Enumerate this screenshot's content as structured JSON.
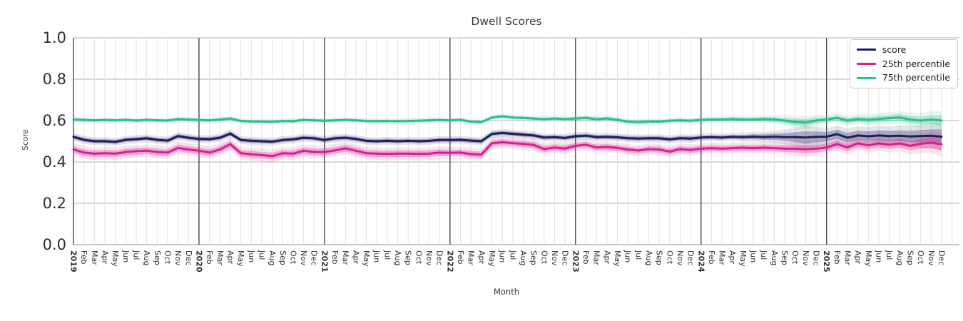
{
  "chart_data": {
    "type": "line",
    "title": "Dwell Scores",
    "xlabel": "Month",
    "ylabel": "Score",
    "ylim": [
      0.0,
      1.0
    ],
    "yticks": [
      0.0,
      0.2,
      0.4,
      0.6,
      0.8,
      1.0
    ],
    "grid": true,
    "legend_position": "upper right",
    "x_tick_labels": [
      "2019",
      "Feb",
      "Mar",
      "Apr",
      "May",
      "Jun",
      "Jul",
      "Aug",
      "Sep",
      "Oct",
      "Nov",
      "Dec",
      "2020",
      "Feb",
      "Mar",
      "Apr",
      "May",
      "Jun",
      "Jul",
      "Aug",
      "Sep",
      "Oct",
      "Nov",
      "Dec",
      "2021",
      "Feb",
      "Mar",
      "Apr",
      "May",
      "Jun",
      "Jul",
      "Aug",
      "Sep",
      "Oct",
      "Nov",
      "Dec",
      "2022",
      "Feb",
      "Mar",
      "Apr",
      "May",
      "Jun",
      "Jul",
      "Aug",
      "Sep",
      "Oct",
      "Nov",
      "Dec",
      "2023",
      "Feb",
      "Mar",
      "Apr",
      "May",
      "Jun",
      "Jul",
      "Aug",
      "Sep",
      "Oct",
      "Nov",
      "Dec",
      "2024",
      "Feb",
      "Mar",
      "Apr",
      "May",
      "Jun",
      "Jul",
      "Aug",
      "Sep",
      "Oct",
      "Nov",
      "Dec",
      "2025",
      "Feb",
      "Mar",
      "Apr",
      "May",
      "Jun",
      "Jul",
      "Aug",
      "Sep",
      "Oct",
      "Nov",
      "Dec"
    ],
    "year_tick_indices": [
      0,
      12,
      24,
      36,
      48,
      60,
      72
    ],
    "series": [
      {
        "name": "score",
        "color": "#1e1e5e",
        "values": [
          0.521,
          0.507,
          0.5,
          0.5,
          0.497,
          0.507,
          0.51,
          0.514,
          0.507,
          0.503,
          0.525,
          0.517,
          0.511,
          0.51,
          0.517,
          0.537,
          0.506,
          0.502,
          0.5,
          0.498,
          0.506,
          0.509,
          0.517,
          0.514,
          0.506,
          0.514,
          0.517,
          0.511,
          0.502,
          0.5,
          0.502,
          0.5,
          0.502,
          0.5,
          0.502,
          0.506,
          0.506,
          0.507,
          0.503,
          0.5,
          0.535,
          0.54,
          0.536,
          0.532,
          0.528,
          0.518,
          0.52,
          0.516,
          0.524,
          0.527,
          0.52,
          0.521,
          0.519,
          0.515,
          0.513,
          0.515,
          0.514,
          0.509,
          0.515,
          0.513,
          0.518,
          0.52,
          0.518,
          0.521,
          0.52,
          0.522,
          0.52,
          0.522,
          0.52,
          0.52,
          0.518,
          0.521,
          0.522,
          0.534,
          0.517,
          0.528,
          0.524,
          0.528,
          0.525,
          0.527,
          0.523,
          0.525,
          0.527,
          0.522
        ],
        "band_halfwidth": [
          0.01,
          0.01,
          0.01,
          0.01,
          0.01,
          0.01,
          0.01,
          0.01,
          0.01,
          0.01,
          0.01,
          0.01,
          0.01,
          0.01,
          0.01,
          0.01,
          0.01,
          0.01,
          0.01,
          0.01,
          0.01,
          0.01,
          0.01,
          0.01,
          0.01,
          0.01,
          0.01,
          0.01,
          0.01,
          0.01,
          0.01,
          0.01,
          0.01,
          0.01,
          0.01,
          0.01,
          0.01,
          0.01,
          0.01,
          0.01,
          0.01,
          0.01,
          0.01,
          0.01,
          0.01,
          0.01,
          0.01,
          0.01,
          0.01,
          0.01,
          0.01,
          0.01,
          0.01,
          0.01,
          0.01,
          0.01,
          0.01,
          0.01,
          0.01,
          0.01,
          0.01,
          0.01,
          0.01,
          0.01,
          0.011,
          0.012,
          0.013,
          0.015,
          0.018,
          0.024,
          0.03,
          0.026,
          0.022,
          0.022,
          0.023,
          0.023,
          0.024,
          0.025,
          0.025,
          0.026,
          0.027,
          0.029,
          0.031,
          0.035
        ]
      },
      {
        "name": "25th percentile",
        "color": "#d6208e",
        "values": [
          0.46,
          0.445,
          0.44,
          0.442,
          0.44,
          0.448,
          0.452,
          0.454,
          0.448,
          0.445,
          0.468,
          0.46,
          0.454,
          0.445,
          0.46,
          0.486,
          0.442,
          0.437,
          0.433,
          0.428,
          0.442,
          0.44,
          0.454,
          0.448,
          0.448,
          0.456,
          0.466,
          0.454,
          0.442,
          0.44,
          0.439,
          0.44,
          0.44,
          0.439,
          0.44,
          0.445,
          0.444,
          0.445,
          0.438,
          0.435,
          0.49,
          0.495,
          0.491,
          0.487,
          0.482,
          0.462,
          0.47,
          0.465,
          0.478,
          0.483,
          0.47,
          0.472,
          0.468,
          0.46,
          0.455,
          0.462,
          0.46,
          0.45,
          0.462,
          0.458,
          0.464,
          0.467,
          0.464,
          0.467,
          0.469,
          0.467,
          0.469,
          0.467,
          0.464,
          0.464,
          0.461,
          0.464,
          0.47,
          0.486,
          0.47,
          0.49,
          0.48,
          0.49,
          0.483,
          0.49,
          0.478,
          0.488,
          0.493,
          0.485
        ],
        "band_halfwidth": [
          0.016,
          0.016,
          0.016,
          0.016,
          0.016,
          0.016,
          0.016,
          0.016,
          0.016,
          0.016,
          0.016,
          0.016,
          0.016,
          0.016,
          0.016,
          0.016,
          0.016,
          0.016,
          0.016,
          0.016,
          0.016,
          0.016,
          0.016,
          0.016,
          0.016,
          0.016,
          0.016,
          0.016,
          0.016,
          0.016,
          0.016,
          0.016,
          0.016,
          0.016,
          0.016,
          0.016,
          0.015,
          0.015,
          0.015,
          0.015,
          0.015,
          0.015,
          0.015,
          0.015,
          0.015,
          0.015,
          0.015,
          0.015,
          0.014,
          0.014,
          0.014,
          0.014,
          0.014,
          0.014,
          0.014,
          0.014,
          0.014,
          0.014,
          0.014,
          0.014,
          0.014,
          0.014,
          0.014,
          0.014,
          0.014,
          0.014,
          0.015,
          0.015,
          0.016,
          0.018,
          0.02,
          0.018,
          0.017,
          0.017,
          0.018,
          0.018,
          0.019,
          0.02,
          0.02,
          0.021,
          0.022,
          0.024,
          0.027,
          0.031
        ]
      },
      {
        "name": "75th percentile",
        "color": "#2cc08c",
        "values": [
          0.605,
          0.603,
          0.601,
          0.603,
          0.601,
          0.603,
          0.6,
          0.603,
          0.601,
          0.6,
          0.607,
          0.605,
          0.603,
          0.601,
          0.605,
          0.61,
          0.598,
          0.596,
          0.595,
          0.594,
          0.598,
          0.597,
          0.603,
          0.601,
          0.599,
          0.601,
          0.603,
          0.601,
          0.598,
          0.597,
          0.598,
          0.597,
          0.598,
          0.599,
          0.601,
          0.603,
          0.601,
          0.603,
          0.595,
          0.592,
          0.615,
          0.621,
          0.615,
          0.613,
          0.61,
          0.607,
          0.61,
          0.607,
          0.61,
          0.613,
          0.607,
          0.61,
          0.603,
          0.595,
          0.592,
          0.595,
          0.595,
          0.599,
          0.601,
          0.599,
          0.603,
          0.605,
          0.605,
          0.607,
          0.605,
          0.605,
          0.607,
          0.605,
          0.6,
          0.593,
          0.59,
          0.6,
          0.605,
          0.613,
          0.6,
          0.607,
          0.603,
          0.608,
          0.612,
          0.615,
          0.605,
          0.6,
          0.605,
          0.6
        ],
        "band_halfwidth": [
          0.007,
          0.007,
          0.007,
          0.007,
          0.007,
          0.007,
          0.007,
          0.007,
          0.007,
          0.007,
          0.007,
          0.007,
          0.007,
          0.007,
          0.007,
          0.007,
          0.007,
          0.007,
          0.007,
          0.007,
          0.007,
          0.007,
          0.007,
          0.007,
          0.007,
          0.007,
          0.007,
          0.007,
          0.007,
          0.007,
          0.007,
          0.007,
          0.007,
          0.007,
          0.007,
          0.007,
          0.007,
          0.007,
          0.007,
          0.007,
          0.007,
          0.007,
          0.007,
          0.007,
          0.007,
          0.007,
          0.007,
          0.007,
          0.008,
          0.008,
          0.008,
          0.008,
          0.008,
          0.008,
          0.008,
          0.008,
          0.008,
          0.008,
          0.008,
          0.008,
          0.008,
          0.008,
          0.008,
          0.009,
          0.009,
          0.009,
          0.01,
          0.011,
          0.013,
          0.016,
          0.018,
          0.014,
          0.012,
          0.012,
          0.013,
          0.013,
          0.014,
          0.014,
          0.015,
          0.016,
          0.017,
          0.019,
          0.021,
          0.025
        ]
      }
    ],
    "style": {
      "axis_text_color": "#2e2e2e",
      "grid_minor_color": "#e2e2e2",
      "grid_major_color": "#cccccc",
      "year_line_color": "#3c3c3c",
      "spine_color": "#3c3c3c",
      "bottom_spine_color": "#bfbfbf"
    }
  }
}
